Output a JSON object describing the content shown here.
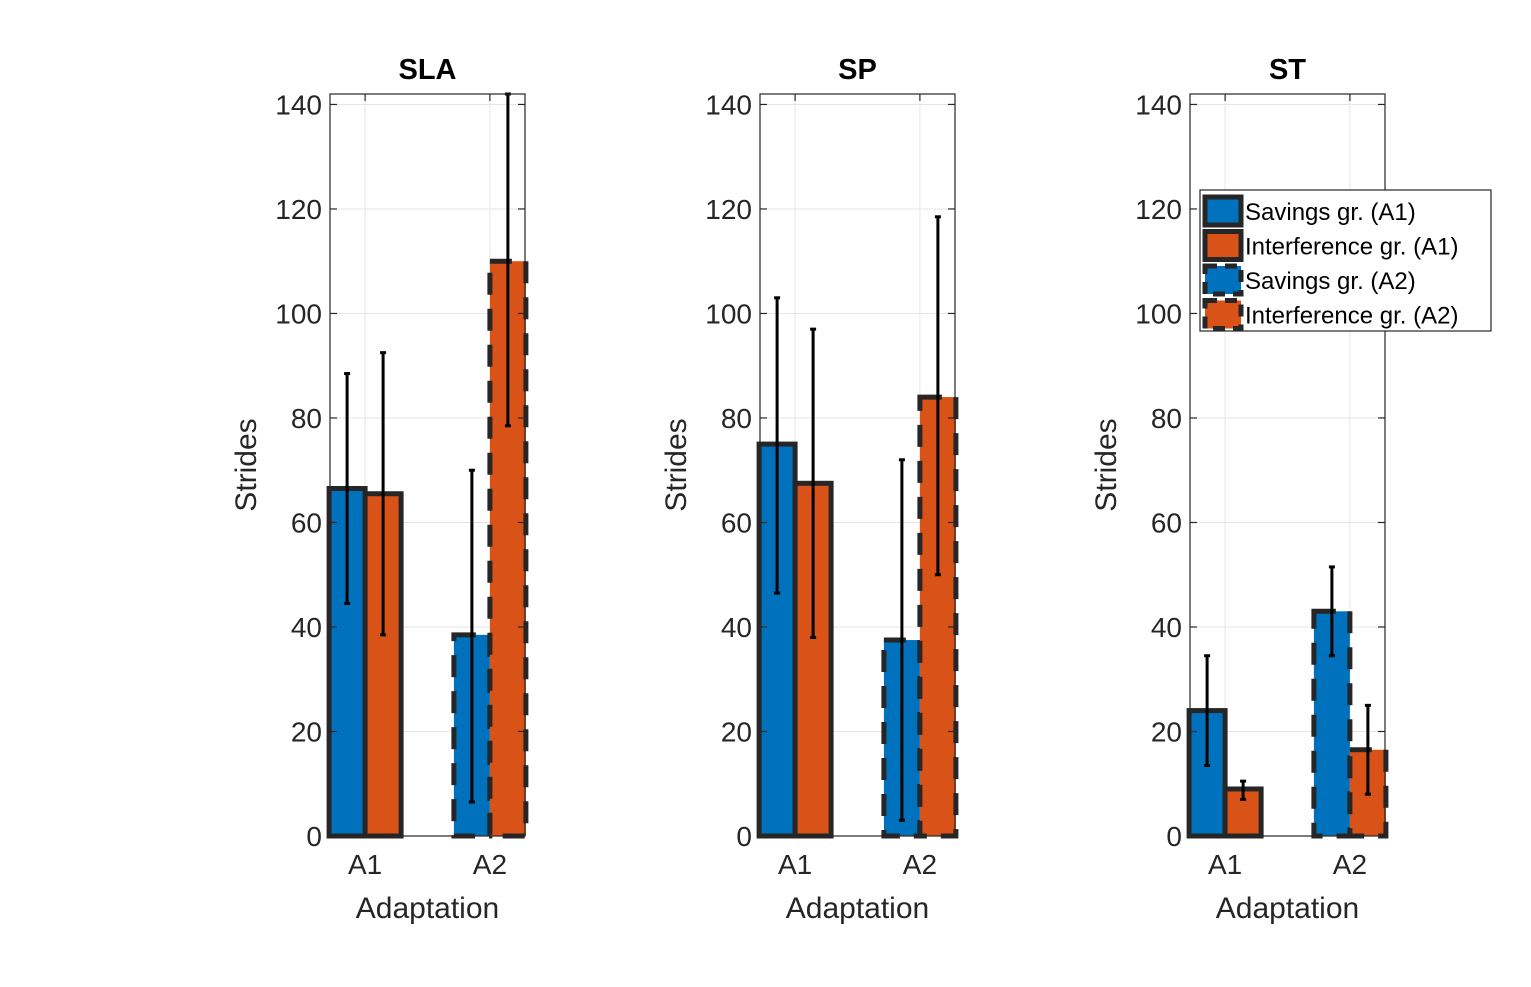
{
  "colors": {
    "savings": "#0072BD",
    "interference": "#D95319",
    "edge": "#262626",
    "grid": "#e6e6e6",
    "errorbar": "#000000"
  },
  "legend": {
    "placement": "upper-right of third panel",
    "entries": [
      {
        "label": "Savings gr. (A1)",
        "color": "#0072BD",
        "style": "solid"
      },
      {
        "label": "Interference gr. (A1)",
        "color": "#D95319",
        "style": "solid"
      },
      {
        "label": "Savings gr. (A2)",
        "color": "#0072BD",
        "style": "dashed"
      },
      {
        "label": "Interference gr. (A2)",
        "color": "#D95319",
        "style": "dashed"
      }
    ]
  },
  "chart_data": [
    {
      "type": "bar",
      "title": "SLA",
      "xlabel": "Adaptation",
      "ylabel": "Strides",
      "ylim": [
        0,
        142
      ],
      "yticks": [
        0,
        20,
        40,
        60,
        80,
        100,
        120,
        140
      ],
      "categories": [
        "A1",
        "A2"
      ],
      "grid": true,
      "series": [
        {
          "group": "savings",
          "values": [
            66.5,
            38.5
          ],
          "err_low": [
            44.5,
            6.5
          ],
          "err_high": [
            88.5,
            70
          ]
        },
        {
          "group": "interference",
          "values": [
            65.5,
            110
          ],
          "err_low": [
            38.5,
            78.5
          ],
          "err_high": [
            92.5,
            142
          ]
        }
      ]
    },
    {
      "type": "bar",
      "title": "SP",
      "xlabel": "Adaptation",
      "ylabel": "Strides",
      "ylim": [
        0,
        142
      ],
      "yticks": [
        0,
        20,
        40,
        60,
        80,
        100,
        120,
        140
      ],
      "categories": [
        "A1",
        "A2"
      ],
      "grid": true,
      "series": [
        {
          "group": "savings",
          "values": [
            75,
            37.5
          ],
          "err_low": [
            46.5,
            3
          ],
          "err_high": [
            103,
            72
          ]
        },
        {
          "group": "interference",
          "values": [
            67.5,
            84
          ],
          "err_low": [
            38,
            50
          ],
          "err_high": [
            97,
            118.5
          ]
        }
      ]
    },
    {
      "type": "bar",
      "title": "ST",
      "xlabel": "Adaptation",
      "ylabel": "Strides",
      "ylim": [
        0,
        142
      ],
      "yticks": [
        0,
        20,
        40,
        60,
        80,
        100,
        120,
        140
      ],
      "categories": [
        "A1",
        "A2"
      ],
      "grid": true,
      "series": [
        {
          "group": "savings",
          "values": [
            24,
            43
          ],
          "err_low": [
            13.5,
            34.5
          ],
          "err_high": [
            34.5,
            51.5
          ]
        },
        {
          "group": "interference",
          "values": [
            9,
            16.5
          ],
          "err_low": [
            7,
            8
          ],
          "err_high": [
            10.5,
            25
          ]
        }
      ]
    }
  ]
}
